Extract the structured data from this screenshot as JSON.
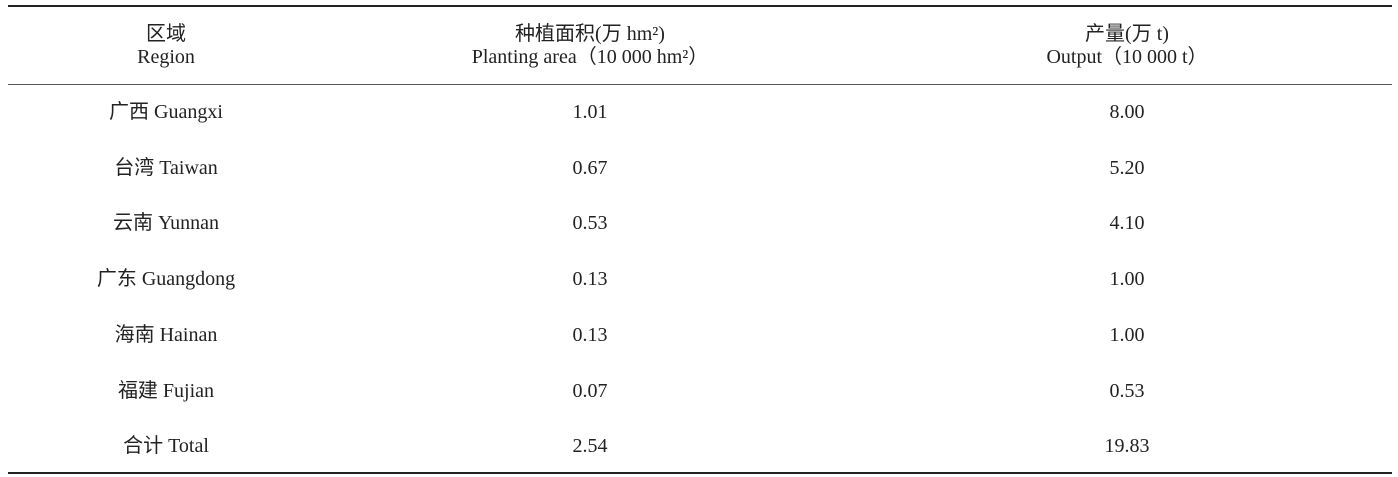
{
  "table": {
    "headers": [
      {
        "zh": "区域",
        "en": "Region"
      },
      {
        "zh": "种植面积(万 hm²)",
        "en": "Planting area（10 000 hm²）"
      },
      {
        "zh": "产量(万 t)",
        "en": "Output（10 000 t）"
      }
    ],
    "rows": [
      [
        "广西 Guangxi",
        "1.01",
        "8.00"
      ],
      [
        "台湾 Taiwan",
        "0.67",
        "5.20"
      ],
      [
        "云南 Yunnan",
        "0.53",
        "4.10"
      ],
      [
        "广东 Guangdong",
        "0.13",
        "1.00"
      ],
      [
        "海南 Hainan",
        "0.13",
        "1.00"
      ],
      [
        "福建 Fujian",
        "0.07",
        "0.53"
      ],
      [
        "合计 Total",
        "2.54",
        "19.83"
      ]
    ]
  }
}
